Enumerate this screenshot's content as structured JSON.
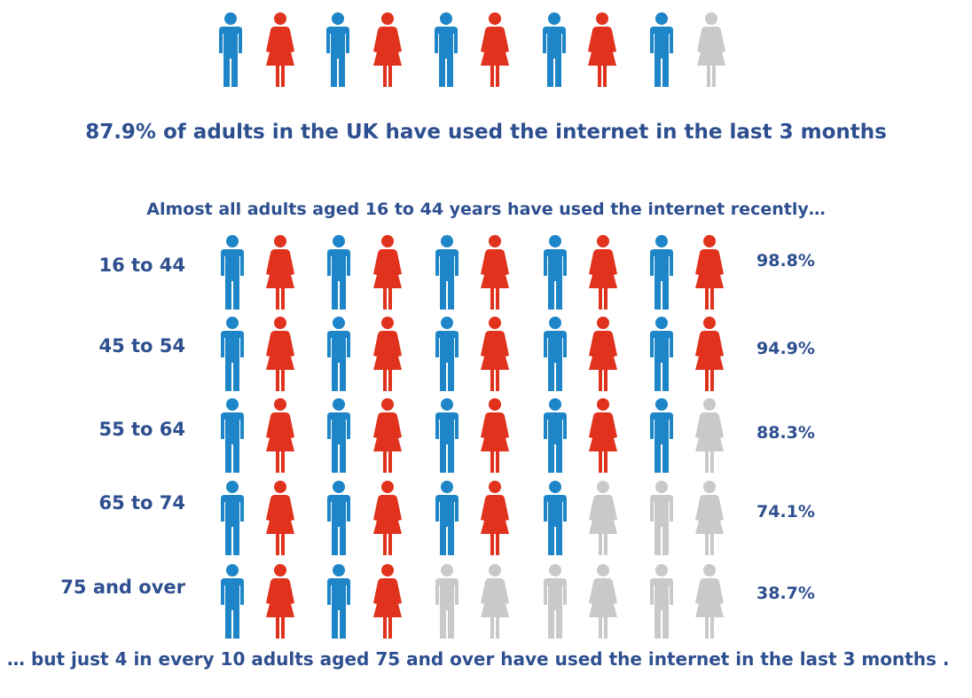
{
  "headline": "87.9% of adults in the UK have used the internet  in the last 3 months",
  "subhead": "Almost all adults aged 16  to  44 years have used the internet recently…",
  "footnote": "… but just 4 in every 10 adults aged 75 and over have used the internet in the last 3 months .",
  "colors": {
    "text": "#2e4f8f",
    "male": "#1e86c8",
    "female": "#e0321c",
    "inactive": "#c9c9c9"
  },
  "icons": {
    "male": "male-person-icon",
    "female": "female-person-icon"
  },
  "chart_data": {
    "type": "pictogram",
    "unit": "%",
    "icons_per_row": 10,
    "icon_pattern": [
      "male",
      "female",
      "male",
      "female",
      "male",
      "female",
      "male",
      "female",
      "male",
      "female"
    ],
    "overall": {
      "value": 87.9,
      "filled_icons": 9,
      "total_icons": 10
    },
    "rows": [
      {
        "label": "16 to 44",
        "value_label": "98.8%",
        "value": 98.8,
        "filled_icons": 10
      },
      {
        "label": "45 to 54",
        "value_label": "94.9%",
        "value": 94.9,
        "filled_icons": 10
      },
      {
        "label": "55 to 64",
        "value_label": "88.3%",
        "value": 88.3,
        "filled_icons": 9
      },
      {
        "label": "65 to 74",
        "value_label": "74.1%",
        "value": 74.1,
        "filled_icons": 7
      },
      {
        "label": "75 and over",
        "value_label": "38.7%",
        "value": 38.7,
        "filled_icons": 4
      }
    ]
  }
}
